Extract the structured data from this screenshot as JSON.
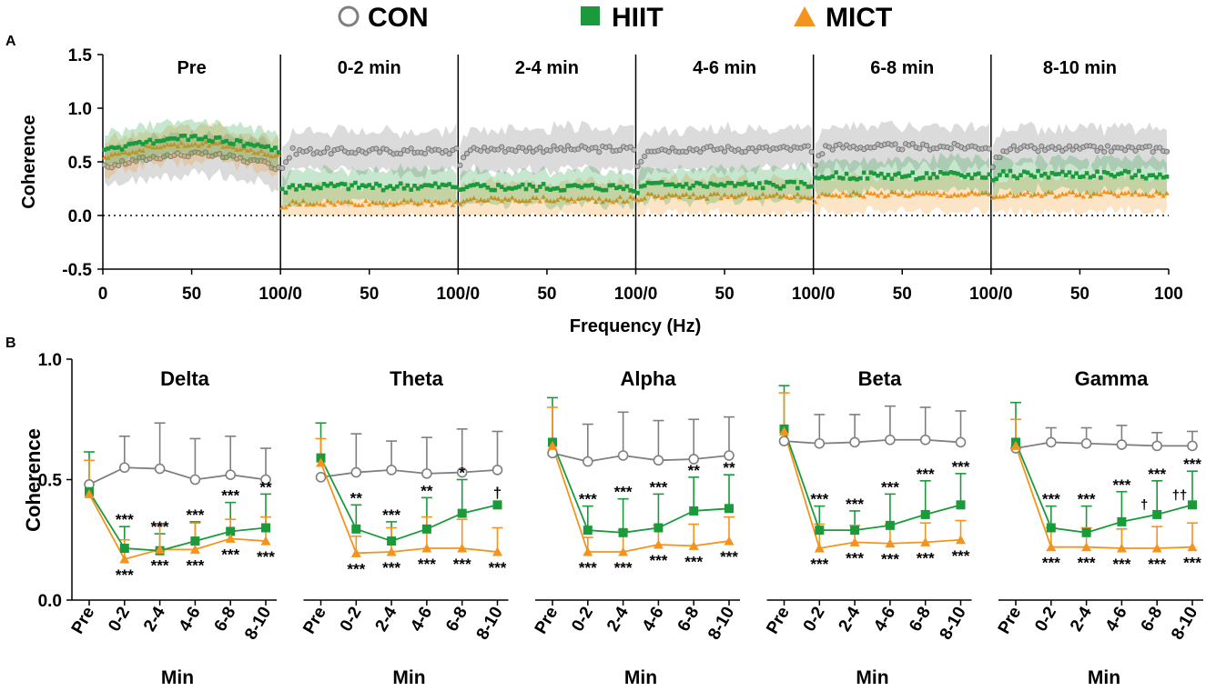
{
  "colors": {
    "CON": "#7f7f7f",
    "HIIT": "#1a9a3a",
    "MICT": "#f4931e",
    "axis": "#000000"
  },
  "legend": [
    {
      "name": "CON",
      "marker": "open-circle"
    },
    {
      "name": "HIIT",
      "marker": "filled-square"
    },
    {
      "name": "MICT",
      "marker": "filled-triangle"
    }
  ],
  "chart_data": [
    {
      "panel": "A",
      "type": "line",
      "ylabel": "Coherence",
      "xlabel": "Frequency (Hz)",
      "ylim": [
        -0.5,
        1.5
      ],
      "yticks": [
        "1.5",
        "1.0",
        "0.5",
        "0.0",
        "-0.5"
      ],
      "xlim_per_segment": [
        0,
        100
      ],
      "xtick_labels": [
        "0",
        "50",
        "100/0",
        "50",
        "100/0",
        "50",
        "100/0",
        "50",
        "100/0",
        "50",
        "100/0",
        "50",
        "100"
      ],
      "segments": [
        "Pre",
        "0-2 min",
        "2-4 min",
        "4-6 min",
        "6-8 min",
        "8-10 min"
      ],
      "series_mean": [
        {
          "name": "CON",
          "values": [
            0.45,
            0.6,
            0.62,
            0.62,
            0.64,
            0.62
          ]
        },
        {
          "name": "HIIT",
          "values": [
            0.6,
            0.27,
            0.26,
            0.28,
            0.37,
            0.38
          ]
        },
        {
          "name": "MICT",
          "values": [
            0.55,
            0.12,
            0.15,
            0.18,
            0.2,
            0.2
          ]
        }
      ]
    },
    {
      "panel": "B",
      "type": "line",
      "ylabel": "Coherence",
      "xlabel": "Min",
      "ylim": [
        0,
        1.0
      ],
      "yticks": [
        "1.0",
        "0.5",
        "0.0"
      ],
      "categories": [
        "Pre",
        "0-2",
        "2-4",
        "4-6",
        "6-8",
        "8-10"
      ],
      "subplots": [
        {
          "title": "Delta",
          "series": [
            {
              "name": "CON",
              "values": [
                0.48,
                0.55,
                0.545,
                0.5,
                0.52,
                0.5
              ],
              "errors": [
                0.0,
                0.13,
                0.19,
                0.17,
                0.16,
                0.13
              ]
            },
            {
              "name": "HIIT",
              "values": [
                0.45,
                0.215,
                0.205,
                0.245,
                0.285,
                0.3
              ],
              "errors": [
                0.165,
                0.09,
                0.07,
                0.08,
                0.12,
                0.14
              ]
            },
            {
              "name": "MICT",
              "values": [
                0.44,
                0.17,
                0.21,
                0.21,
                0.255,
                0.245
              ],
              "errors": [
                0.14,
                0.08,
                0.1,
                0.11,
                0.08,
                0.1
              ]
            }
          ],
          "annotations_above": [
            "",
            "***",
            "***",
            "***",
            "***",
            "**"
          ],
          "annotations_below": [
            "",
            "***",
            "***",
            "***",
            "***",
            "***"
          ]
        },
        {
          "title": "Theta",
          "series": [
            {
              "name": "CON",
              "values": [
                0.51,
                0.53,
                0.54,
                0.525,
                0.53,
                0.54
              ],
              "errors": [
                0.0,
                0.16,
                0.12,
                0.15,
                0.18,
                0.16
              ]
            },
            {
              "name": "HIIT",
              "values": [
                0.59,
                0.295,
                0.245,
                0.295,
                0.36,
                0.395
              ],
              "errors": [
                0.145,
                0.1,
                0.08,
                0.13,
                0.14,
                0.0
              ]
            },
            {
              "name": "MICT",
              "values": [
                0.57,
                0.195,
                0.2,
                0.215,
                0.215,
                0.2
              ],
              "errors": [
                0.1,
                0.07,
                0.1,
                0.13,
                0.12,
                0.1
              ]
            }
          ],
          "annotations_above": [
            "",
            "**",
            "***",
            "**",
            "*",
            "†"
          ],
          "annotations_below": [
            "",
            "***",
            "***",
            "***",
            "***",
            "***"
          ]
        },
        {
          "title": "Alpha",
          "series": [
            {
              "name": "CON",
              "values": [
                0.61,
                0.575,
                0.6,
                0.58,
                0.585,
                0.6
              ],
              "errors": [
                0.0,
                0.155,
                0.18,
                0.165,
                0.165,
                0.16
              ]
            },
            {
              "name": "HIIT",
              "values": [
                0.655,
                0.29,
                0.28,
                0.3,
                0.37,
                0.38
              ],
              "errors": [
                0.185,
                0.1,
                0.14,
                0.14,
                0.14,
                0.14
              ]
            },
            {
              "name": "MICT",
              "values": [
                0.64,
                0.2,
                0.2,
                0.23,
                0.225,
                0.245
              ],
              "errors": [
                0.16,
                0.06,
                0.09,
                0.08,
                0.09,
                0.1
              ]
            }
          ],
          "annotations_above": [
            "",
            "***",
            "***",
            "***",
            "**",
            "**"
          ],
          "annotations_below": [
            "",
            "***",
            "***",
            "***",
            "***",
            "***"
          ]
        },
        {
          "title": "Beta",
          "series": [
            {
              "name": "CON",
              "values": [
                0.66,
                0.65,
                0.655,
                0.665,
                0.665,
                0.655
              ],
              "errors": [
                0.0,
                0.12,
                0.115,
                0.14,
                0.135,
                0.13
              ]
            },
            {
              "name": "HIIT",
              "values": [
                0.71,
                0.29,
                0.29,
                0.31,
                0.355,
                0.395
              ],
              "errors": [
                0.18,
                0.1,
                0.08,
                0.13,
                0.14,
                0.13
              ]
            },
            {
              "name": "MICT",
              "values": [
                0.7,
                0.215,
                0.24,
                0.235,
                0.24,
                0.25
              ],
              "errors": [
                0.16,
                0.1,
                0.07,
                0.08,
                0.08,
                0.08
              ]
            }
          ],
          "annotations_above": [
            "",
            "***",
            "***",
            "***",
            "***",
            "***"
          ],
          "annotations_below": [
            "",
            "***",
            "***",
            "***",
            "***",
            "***"
          ]
        },
        {
          "title": "Gamma",
          "series": [
            {
              "name": "CON",
              "values": [
                0.63,
                0.655,
                0.65,
                0.645,
                0.64,
                0.64
              ],
              "errors": [
                0.0,
                0.06,
                0.065,
                0.08,
                0.055,
                0.06
              ]
            },
            {
              "name": "HIIT",
              "values": [
                0.655,
                0.3,
                0.28,
                0.325,
                0.355,
                0.395
              ],
              "errors": [
                0.165,
                0.09,
                0.11,
                0.125,
                0.14,
                0.14
              ]
            },
            {
              "name": "MICT",
              "values": [
                0.64,
                0.22,
                0.22,
                0.215,
                0.215,
                0.22
              ],
              "errors": [
                0.11,
                0.08,
                0.08,
                0.08,
                0.09,
                0.1
              ]
            }
          ],
          "annotations_above": [
            "",
            "***",
            "***",
            "***",
            "***",
            "***"
          ],
          "annotations_below": [
            "",
            "***",
            "***",
            "***",
            "***",
            "***"
          ],
          "annotations_extra": [
            "",
            "",
            "",
            "",
            "†",
            "††"
          ]
        }
      ]
    }
  ]
}
